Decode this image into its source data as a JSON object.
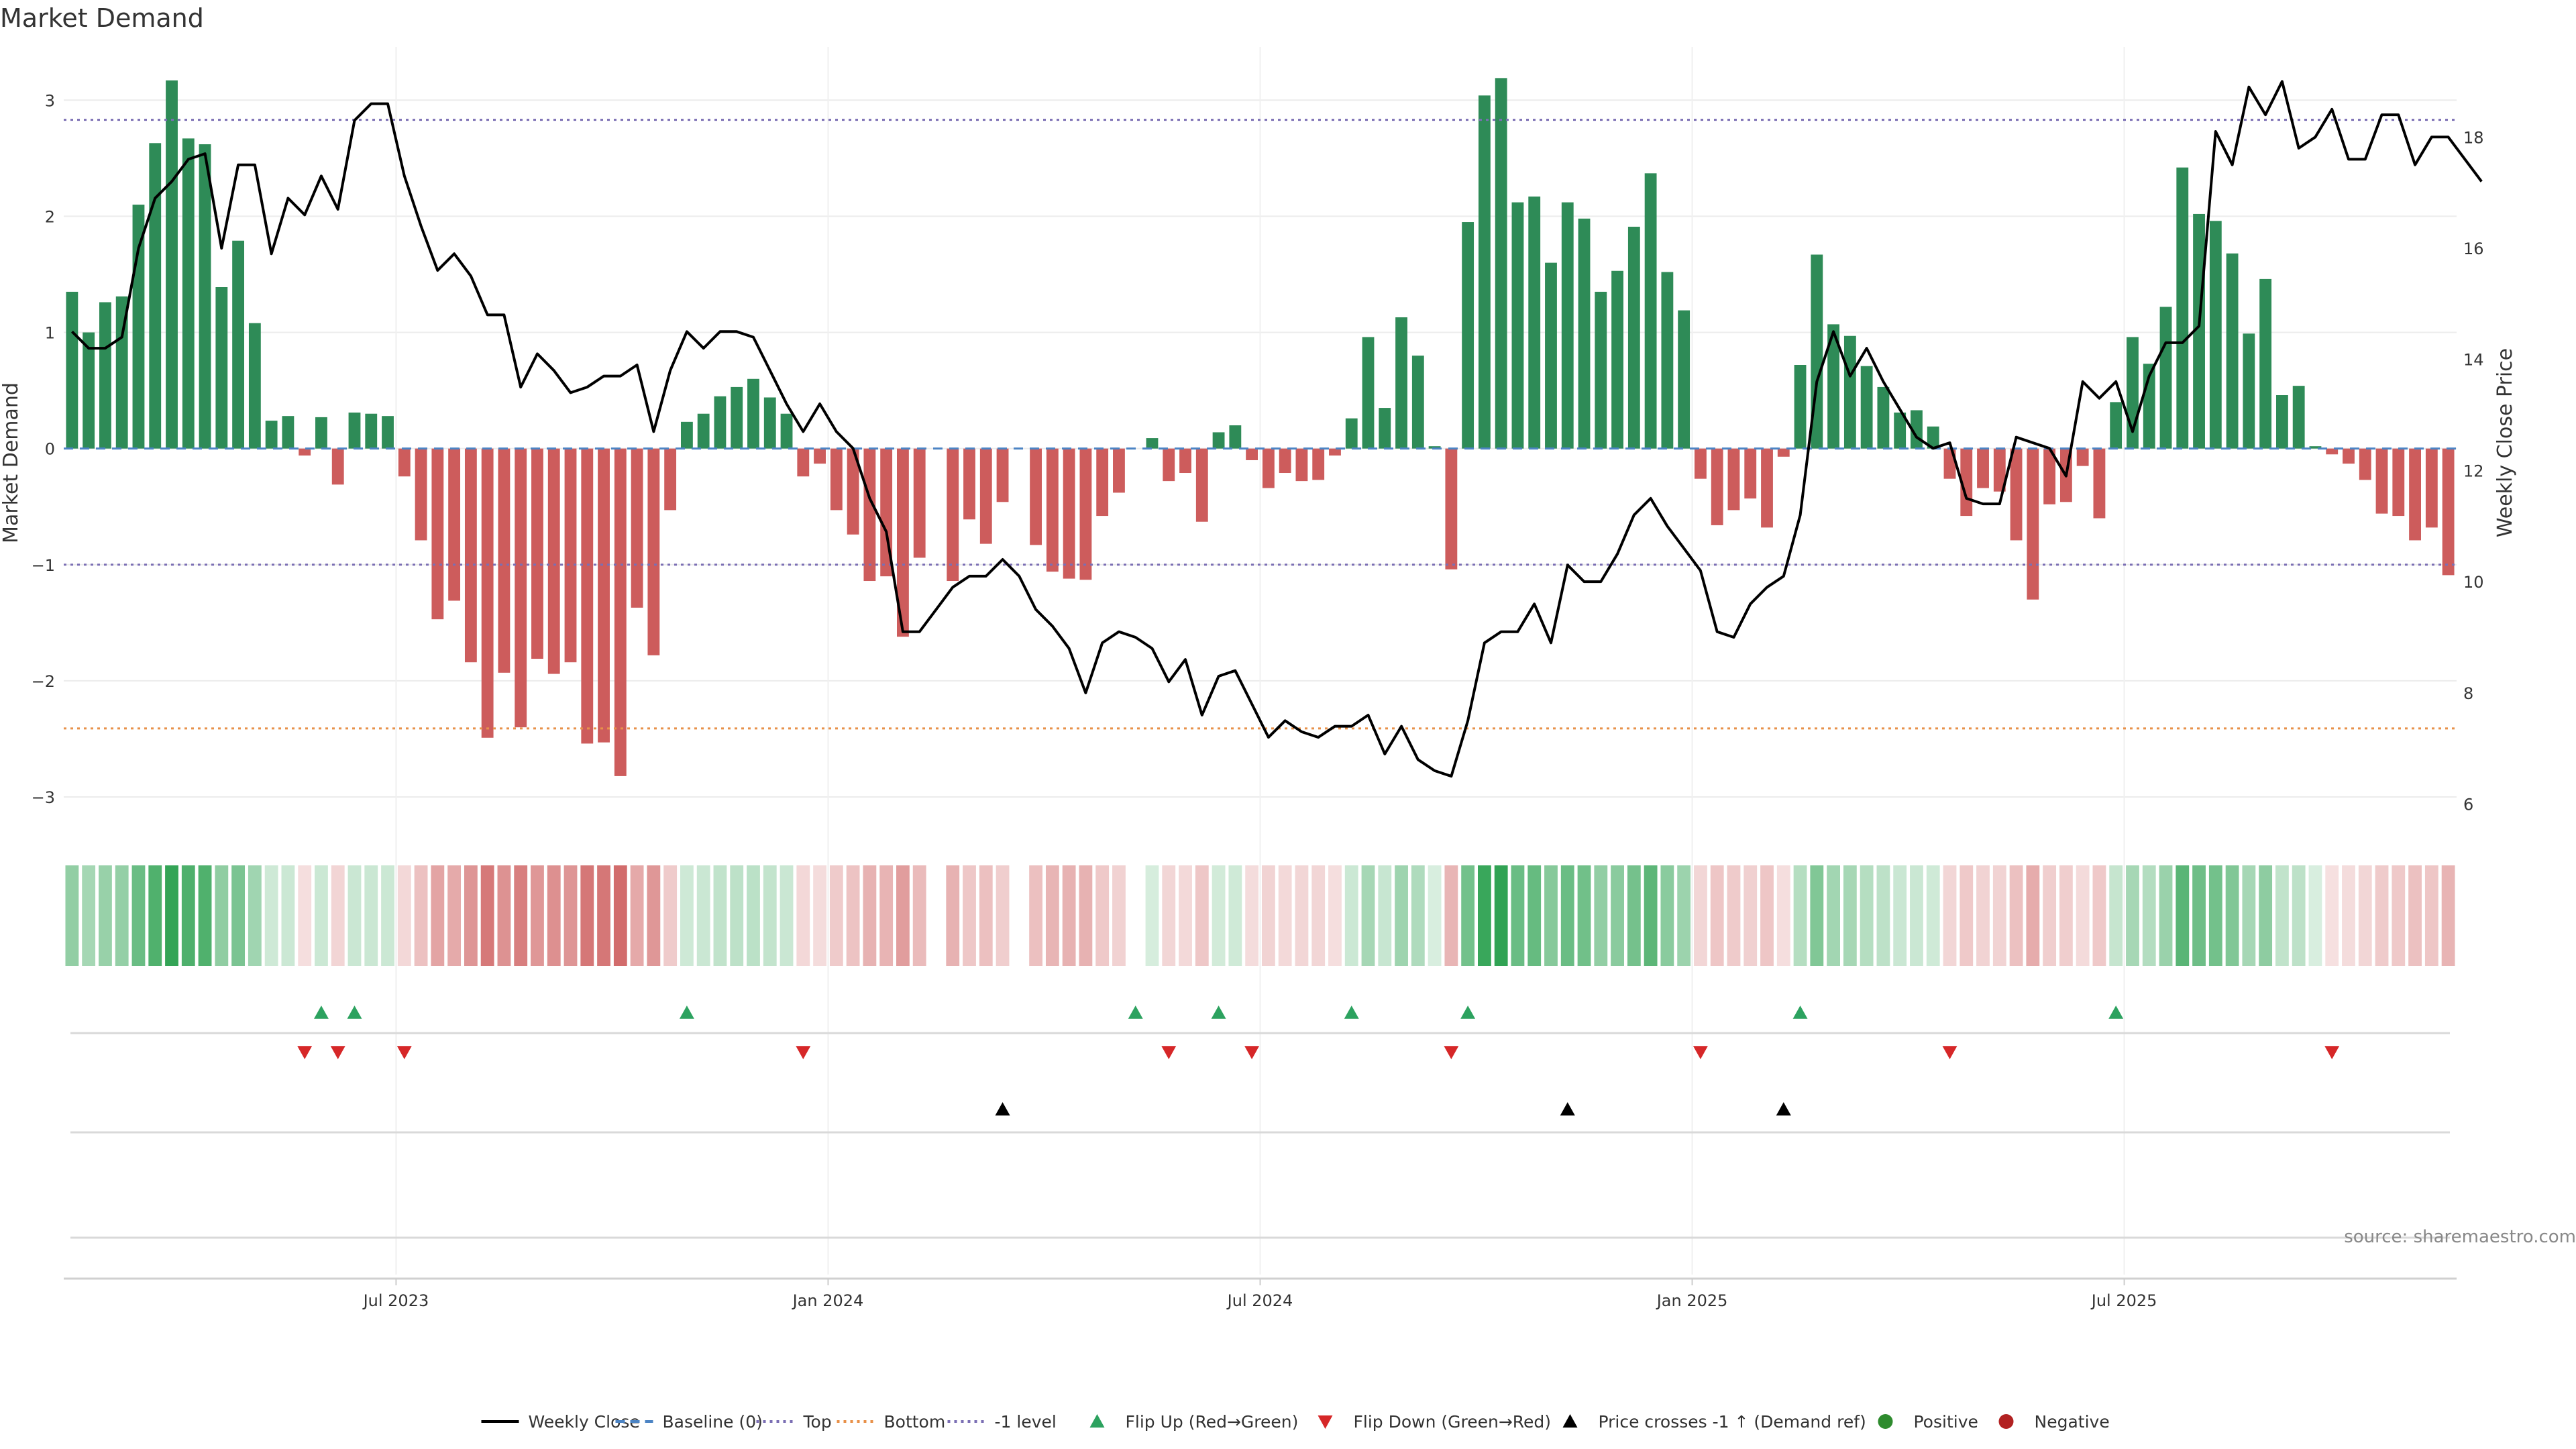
{
  "chart_data": {
    "type": "bar",
    "title": "Market Demand",
    "ylabel_left": "Market Demand",
    "ylabel_right": "Weekly Close Price",
    "ylim_left": [
      -3.3,
      3.4
    ],
    "ylim_right": [
      5.5,
      19.5
    ],
    "yticks_left": [
      3,
      2,
      1,
      0,
      -1,
      -2,
      -3
    ],
    "ytick_labels_left": [
      "3",
      "2",
      "1",
      "0",
      "−1",
      "−2",
      "−3"
    ],
    "yticks_right": [
      18,
      16,
      14,
      12,
      10,
      8,
      6
    ],
    "ytick_labels_right": [
      "18",
      "16",
      "14",
      "12",
      "10",
      "8",
      "6"
    ],
    "xtick_labels": [
      "Jul 2023",
      "Jan 2024",
      "Jul 2024",
      "Jan 2025",
      "Jul 2025"
    ],
    "xtick_weeks": [
      20,
      46,
      72,
      98,
      124
    ],
    "reference_lines": {
      "top": 2.83,
      "bottom": -2.41,
      "minus_one": -1.0,
      "baseline": 0
    },
    "demand": [
      1.35,
      1.0,
      1.26,
      1.31,
      2.1,
      2.63,
      3.17,
      2.67,
      2.62,
      1.39,
      1.79,
      1.08,
      0.24,
      0.28,
      -0.06,
      0.27,
      -0.31,
      0.31,
      0.3,
      0.28,
      -0.24,
      -0.79,
      -1.47,
      -1.31,
      -1.84,
      -2.49,
      -1.93,
      -2.4,
      -1.81,
      -1.94,
      -1.84,
      -2.54,
      -2.53,
      -2.82,
      -1.37,
      -1.78,
      -0.53,
      0.23,
      0.3,
      0.45,
      0.53,
      0.6,
      0.44,
      0.3,
      -0.24,
      -0.13,
      -0.53,
      -0.74,
      -1.14,
      -1.1,
      -1.62,
      -0.94,
      null,
      -1.14,
      -0.61,
      -0.82,
      -0.46,
      null,
      -0.83,
      -1.06,
      -1.12,
      -1.13,
      -0.58,
      -0.38,
      null,
      0.09,
      -0.28,
      -0.21,
      -0.63,
      0.14,
      0.2,
      -0.1,
      -0.34,
      -0.21,
      -0.28,
      -0.27,
      -0.06,
      0.26,
      0.96,
      0.35,
      1.13,
      0.8,
      0.02,
      -1.04,
      1.95,
      3.04,
      3.19,
      2.12,
      2.17,
      1.6,
      2.12,
      1.98,
      1.35,
      1.53,
      1.91,
      2.37,
      1.52,
      1.19,
      -0.26,
      -0.66,
      -0.53,
      -0.43,
      -0.68,
      -0.07,
      0.72,
      1.67,
      1.07,
      0.97,
      0.71,
      0.53,
      0.31,
      0.33,
      0.19,
      -0.26,
      -0.58,
      -0.34,
      -0.37,
      -0.79,
      -1.3,
      -0.48,
      -0.46,
      -0.15,
      -0.6,
      0.4,
      0.96,
      0.73,
      1.22,
      2.42,
      2.02,
      1.96,
      1.68,
      0.99,
      1.46,
      0.46,
      0.54,
      0.02,
      -0.05,
      -0.13,
      -0.27,
      -0.56,
      -0.58,
      -0.79,
      -0.68,
      -1.09
    ],
    "weekly_close": [
      14.5,
      14.2,
      14.2,
      14.4,
      16.0,
      16.9,
      17.2,
      17.6,
      17.7,
      16.0,
      17.5,
      17.5,
      15.9,
      16.9,
      16.6,
      17.3,
      16.7,
      18.3,
      18.6,
      18.6,
      17.3,
      16.4,
      15.6,
      15.9,
      15.5,
      14.8,
      14.8,
      13.5,
      14.1,
      13.8,
      13.4,
      13.5,
      13.7,
      13.7,
      13.9,
      12.7,
      13.8,
      14.5,
      14.2,
      14.5,
      14.5,
      14.4,
      13.8,
      13.2,
      12.7,
      13.2,
      12.7,
      12.4,
      11.5,
      10.9,
      9.1,
      9.1,
      9.5,
      9.9,
      10.1,
      10.1,
      10.4,
      10.1,
      9.5,
      9.2,
      8.8,
      8.0,
      8.9,
      9.1,
      9.0,
      8.8,
      8.2,
      8.6,
      7.6,
      8.3,
      8.4,
      7.8,
      7.2,
      7.5,
      7.3,
      7.2,
      7.4,
      7.4,
      7.6,
      6.9,
      7.4,
      6.8,
      6.6,
      6.5,
      7.5,
      8.9,
      9.1,
      9.1,
      9.6,
      8.9,
      10.3,
      10.0,
      10.0,
      10.5,
      11.2,
      11.5,
      11.0,
      10.6,
      10.2,
      9.1,
      9.0,
      9.6,
      9.9,
      10.1,
      11.2,
      13.6,
      14.5,
      13.7,
      14.2,
      13.6,
      13.1,
      12.6,
      12.4,
      12.5,
      11.5,
      11.4,
      11.4,
      12.6,
      12.5,
      12.4,
      11.9,
      13.6,
      13.3,
      13.6,
      12.7,
      13.7,
      14.3,
      14.3,
      14.6,
      18.1,
      17.5,
      18.9,
      18.4,
      19.0,
      17.8,
      18.0,
      18.5,
      17.6,
      17.6,
      18.4,
      18.4,
      17.5,
      18.0,
      18.0,
      17.6,
      17.2
    ],
    "flip_up_weeks": [
      15,
      17,
      37,
      64,
      69,
      77,
      84,
      104,
      123
    ],
    "flip_down_weeks": [
      14,
      16,
      20,
      44,
      66,
      71,
      83,
      98,
      113,
      136
    ],
    "price_cross_weeks": [
      56,
      90,
      103
    ],
    "legend": [
      {
        "label": "Weekly Close",
        "kind": "line",
        "color": "#000000"
      },
      {
        "label": "Baseline (0)",
        "kind": "dash",
        "color": "#4c84c4"
      },
      {
        "label": "Top",
        "kind": "dot",
        "color": "#7b6fb4"
      },
      {
        "label": "Bottom",
        "kind": "dot",
        "color": "#e8914a"
      },
      {
        "label": "-1 level",
        "kind": "dot",
        "color": "#7b6fb4"
      },
      {
        "label": "Flip Up (Red→Green)",
        "kind": "tri-up",
        "color": "#2ca25f"
      },
      {
        "label": "Flip Down (Green→Red)",
        "kind": "tri-down",
        "color": "#d62728"
      },
      {
        "label": "Price crosses -1 ↑ (Demand ref)",
        "kind": "tri-up",
        "color": "#000000"
      },
      {
        "label": "Positive",
        "kind": "circle",
        "color": "#2e8b2e"
      },
      {
        "label": "Negative",
        "kind": "circle",
        "color": "#b22222"
      }
    ],
    "source": "source: sharemaestro.com",
    "colors": {
      "positive": "#2e8b57",
      "negative": "#cd5c5c",
      "flip_up": "#2ca25f",
      "flip_down": "#d62728",
      "price": "#000000",
      "top": "#7b6fb4",
      "bottom": "#e8914a",
      "baseline": "#4c84c4"
    }
  }
}
